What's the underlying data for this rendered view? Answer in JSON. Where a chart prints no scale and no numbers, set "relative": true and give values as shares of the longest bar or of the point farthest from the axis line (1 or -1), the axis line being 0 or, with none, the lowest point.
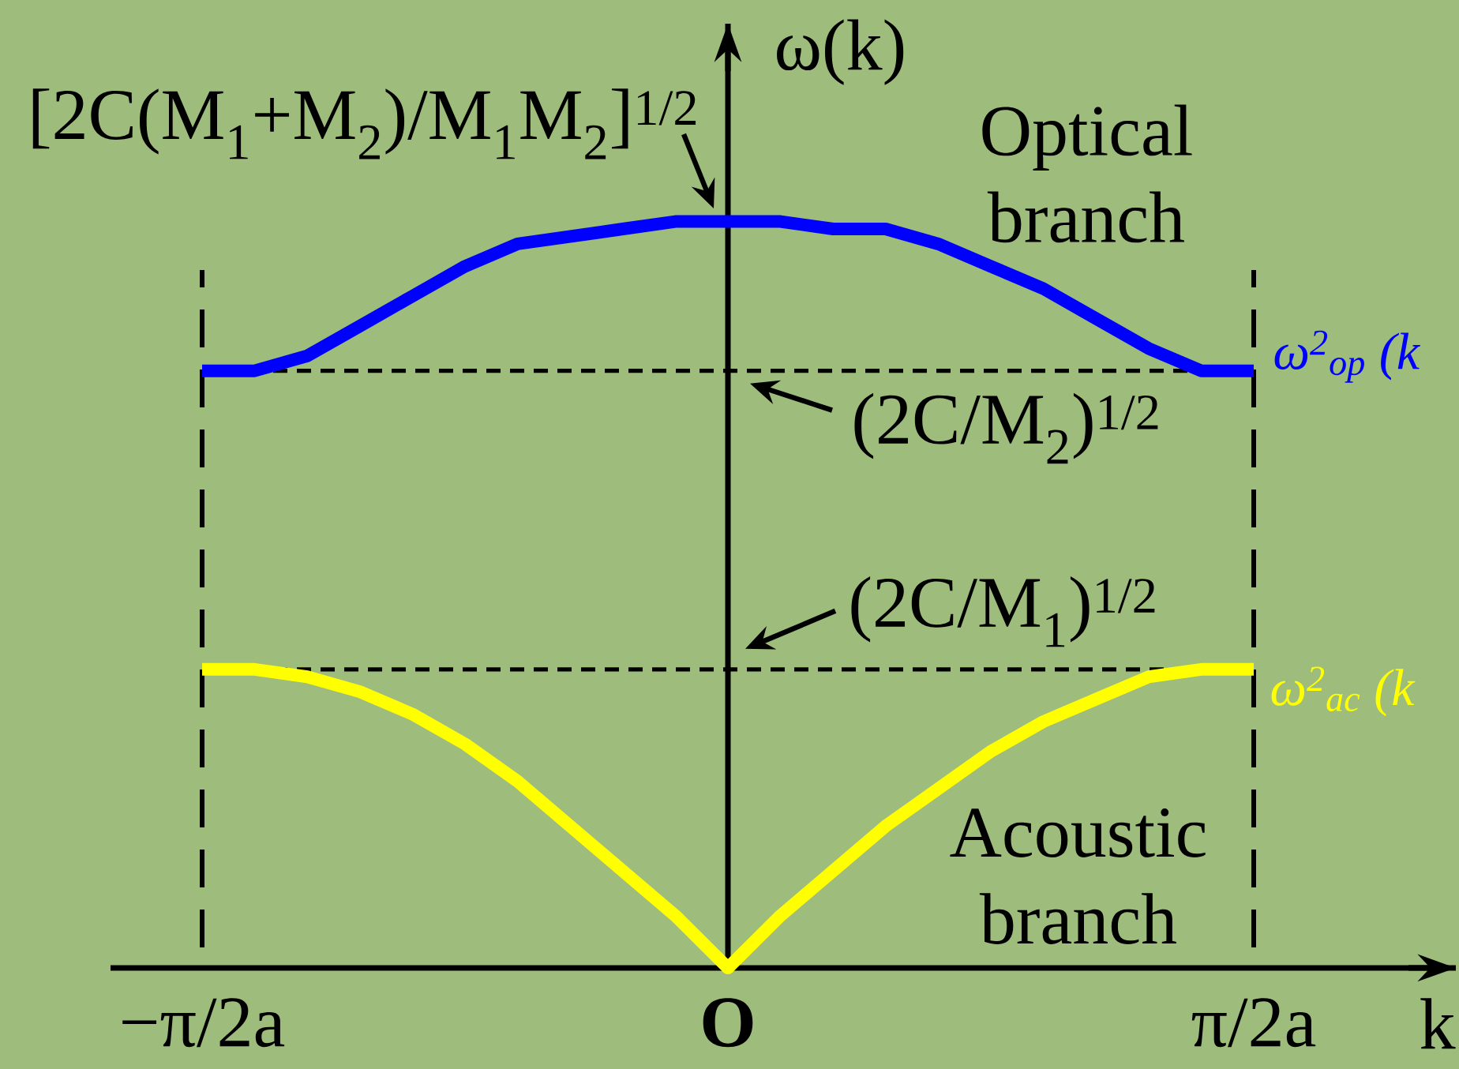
{
  "chart_data": {
    "type": "line",
    "relative": true,
    "xlabel": "k",
    "ylabel": "ω(k)",
    "categories": [
      "−π/2a",
      null,
      null,
      null,
      null,
      null,
      null,
      null,
      null,
      null,
      "O",
      null,
      null,
      null,
      null,
      null,
      null,
      null,
      null,
      null,
      "π/2a"
    ],
    "marker": "none",
    "line_style": "solid",
    "series": [
      {
        "name": "ω$^{2}$$_{op}$ (k",
        "color": "#0000ff",
        "values": [
          0.8,
          0.8,
          0.82,
          0.86,
          0.9,
          0.94,
          0.97,
          0.98,
          0.99,
          1,
          1,
          1,
          0.99,
          0.99,
          0.97,
          0.94,
          0.91,
          0.87,
          0.83,
          0.8,
          0.8
        ]
      },
      {
        "name": "ω$^{2}$$_{ac}$ (k",
        "color": "#ffff00",
        "values": [
          0.4,
          0.4,
          0.39,
          0.37,
          0.34,
          0.3,
          0.25,
          0.19,
          0.13,
          0.07,
          0,
          0.07,
          0.13,
          0.19,
          0.24,
          0.29,
          0.33,
          0.36,
          0.39,
          0.4,
          0.4
        ]
      }
    ],
    "ref_lines": [
      {
        "axis": "y",
        "value": 0.8,
        "label": "(2C/M$_{2}$)$^{1/2}$",
        "color": "#000000",
        "line_style": "dashed"
      },
      {
        "axis": "y",
        "value": 0.4,
        "label": "(2C/M$_{1}$)$^{1/2}$",
        "color": "#000000",
        "line_style": "dashed"
      },
      {
        "axis": "x",
        "value": "−π/2a",
        "color": "#000000",
        "line_style": "dashed"
      },
      {
        "axis": "x",
        "value": "π/2a",
        "color": "#000000",
        "line_style": "dashed"
      }
    ],
    "annotations": [
      "[2C(M$_{1}$+M$_{2}$)/M$_{1}$M$_{2}$]$^{1/2}$",
      "Optical branch",
      "Acoustic branch"
    ]
  }
}
